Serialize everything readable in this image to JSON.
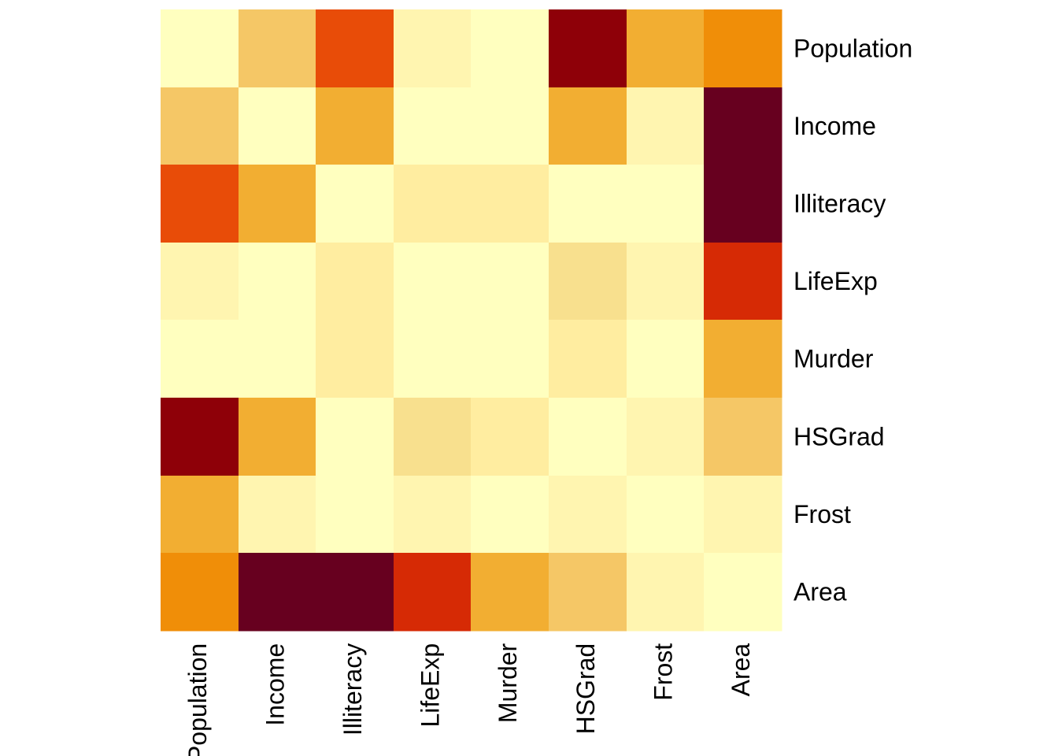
{
  "chart_data": {
    "type": "heatmap",
    "rows": [
      "Population",
      "Income",
      "Illiteracy",
      "LifeExp",
      "Murder",
      "HSGrad",
      "Frost",
      "Area"
    ],
    "columns": [
      "Population",
      "Income",
      "Illiteracy",
      "LifeExp",
      "Murder",
      "HSGrad",
      "Frost",
      "Area"
    ],
    "color_scale": [
      "#FFFFBF",
      "#FFF5B0",
      "#FFEDA0",
      "#F8E08E",
      "#F5C766",
      "#F2AE32",
      "#F08E08",
      "#E84C08",
      "#D62A05",
      "#8E0008",
      "#67001F"
    ],
    "levels": [
      [
        0,
        4,
        7,
        1,
        0,
        9,
        5,
        6
      ],
      [
        4,
        0,
        5,
        0,
        0,
        5,
        1,
        10
      ],
      [
        7,
        5,
        0,
        2,
        2,
        0,
        0,
        10
      ],
      [
        1,
        0,
        2,
        0,
        0,
        3,
        1,
        8
      ],
      [
        0,
        0,
        2,
        0,
        0,
        2,
        0,
        5
      ],
      [
        9,
        5,
        0,
        3,
        2,
        0,
        1,
        4
      ],
      [
        5,
        1,
        0,
        1,
        0,
        1,
        0,
        1
      ],
      [
        6,
        10,
        10,
        8,
        5,
        4,
        1,
        0
      ]
    ],
    "title": "",
    "xlabel": "",
    "ylabel": "",
    "legend": "none",
    "grid": false
  }
}
